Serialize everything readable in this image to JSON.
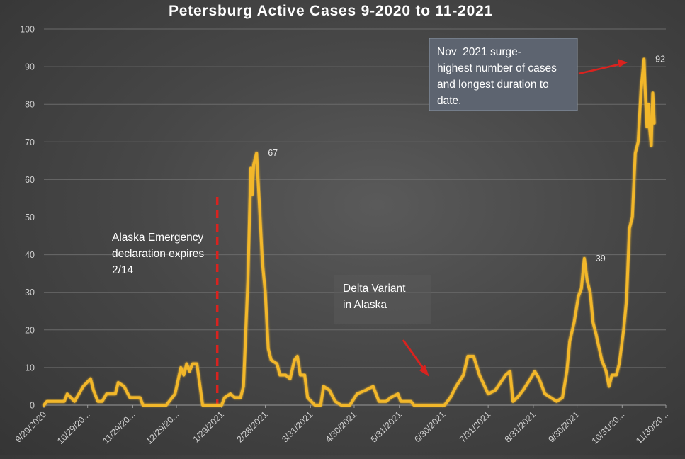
{
  "chart_data": {
    "type": "line",
    "title": "Petersburg Active Cases 9-2020 to 11-2021",
    "xlabel": "",
    "ylabel": "",
    "ylim": [
      0,
      100
    ],
    "yticks": [
      0,
      10,
      20,
      30,
      40,
      50,
      60,
      70,
      80,
      90,
      100
    ],
    "x_range": [
      "2020-09-29",
      "2021-11-30"
    ],
    "xtick_labels": [
      {
        "date": "2020-09-29",
        "label": "9/29/2020"
      },
      {
        "date": "2020-10-29",
        "label": "10/29/20..."
      },
      {
        "date": "2020-11-29",
        "label": "11/29/20..."
      },
      {
        "date": "2020-12-29",
        "label": "12/29/20..."
      },
      {
        "date": "2021-01-29",
        "label": "1/29/2021"
      },
      {
        "date": "2021-02-28",
        "label": "2/28/2021"
      },
      {
        "date": "2021-03-31",
        "label": "3/31/2021"
      },
      {
        "date": "2021-04-30",
        "label": "4/30/2021"
      },
      {
        "date": "2021-05-31",
        "label": "5/31/2021"
      },
      {
        "date": "2021-06-30",
        "label": "6/30/2021"
      },
      {
        "date": "2021-07-31",
        "label": "7/31/2021"
      },
      {
        "date": "2021-08-31",
        "label": "8/31/2021"
      },
      {
        "date": "2021-09-30",
        "label": "9/30/2021"
      },
      {
        "date": "2021-10-31",
        "label": "10/31/20..."
      },
      {
        "date": "2021-11-30",
        "label": "11/30/20..."
      }
    ],
    "grid": true,
    "legend": "none",
    "series": [
      {
        "color": "#f2b72c",
        "points": [
          [
            "2020-09-29",
            0
          ],
          [
            "2020-10-01",
            1
          ],
          [
            "2020-10-13",
            1
          ],
          [
            "2020-10-15",
            3
          ],
          [
            "2020-10-20",
            1
          ],
          [
            "2020-10-26",
            5
          ],
          [
            "2020-10-31",
            7
          ],
          [
            "2020-11-02",
            4
          ],
          [
            "2020-11-05",
            1
          ],
          [
            "2020-11-08",
            1
          ],
          [
            "2020-11-11",
            3
          ],
          [
            "2020-11-17",
            3
          ],
          [
            "2020-11-19",
            6
          ],
          [
            "2020-11-23",
            5
          ],
          [
            "2020-11-27",
            2
          ],
          [
            "2020-12-04",
            2
          ],
          [
            "2020-12-06",
            0
          ],
          [
            "2020-12-22",
            0
          ],
          [
            "2020-12-28",
            3
          ],
          [
            "2021-01-01",
            10
          ],
          [
            "2021-01-03",
            8
          ],
          [
            "2021-01-05",
            11
          ],
          [
            "2021-01-07",
            9
          ],
          [
            "2021-01-09",
            11
          ],
          [
            "2021-01-12",
            11
          ],
          [
            "2021-01-16",
            0
          ],
          [
            "2021-01-29",
            0
          ],
          [
            "2021-01-31",
            2
          ],
          [
            "2021-02-04",
            3
          ],
          [
            "2021-02-07",
            2
          ],
          [
            "2021-02-11",
            2
          ],
          [
            "2021-02-13",
            5
          ],
          [
            "2021-02-16",
            33
          ],
          [
            "2021-02-18",
            63
          ],
          [
            "2021-02-19",
            56
          ],
          [
            "2021-02-20",
            64
          ],
          [
            "2021-02-22",
            67
          ],
          [
            "2021-02-24",
            53
          ],
          [
            "2021-02-26",
            38
          ],
          [
            "2021-02-28",
            30
          ],
          [
            "2021-03-02",
            15
          ],
          [
            "2021-03-04",
            12
          ],
          [
            "2021-03-08",
            11
          ],
          [
            "2021-03-10",
            8
          ],
          [
            "2021-03-14",
            8
          ],
          [
            "2021-03-17",
            7
          ],
          [
            "2021-03-20",
            12
          ],
          [
            "2021-03-22",
            13
          ],
          [
            "2021-03-24",
            8
          ],
          [
            "2021-03-27",
            8
          ],
          [
            "2021-03-29",
            2
          ],
          [
            "2021-04-03",
            0
          ],
          [
            "2021-04-07",
            0
          ],
          [
            "2021-04-09",
            5
          ],
          [
            "2021-04-13",
            4
          ],
          [
            "2021-04-17",
            1
          ],
          [
            "2021-04-21",
            0
          ],
          [
            "2021-04-27",
            0
          ],
          [
            "2021-05-02",
            3
          ],
          [
            "2021-05-08",
            4
          ],
          [
            "2021-05-13",
            5
          ],
          [
            "2021-05-17",
            1
          ],
          [
            "2021-05-22",
            1
          ],
          [
            "2021-05-25",
            2
          ],
          [
            "2021-05-30",
            3
          ],
          [
            "2021-06-01",
            1
          ],
          [
            "2021-06-08",
            1
          ],
          [
            "2021-06-10",
            0
          ],
          [
            "2021-07-01",
            0
          ],
          [
            "2021-07-05",
            2
          ],
          [
            "2021-07-09",
            5
          ],
          [
            "2021-07-14",
            8
          ],
          [
            "2021-07-17",
            13
          ],
          [
            "2021-07-21",
            13
          ],
          [
            "2021-07-25",
            8
          ],
          [
            "2021-07-31",
            3
          ],
          [
            "2021-08-05",
            4
          ],
          [
            "2021-08-12",
            8
          ],
          [
            "2021-08-15",
            9
          ],
          [
            "2021-08-17",
            1
          ],
          [
            "2021-08-20",
            2
          ],
          [
            "2021-08-24",
            4
          ],
          [
            "2021-08-29",
            7
          ],
          [
            "2021-09-01",
            9
          ],
          [
            "2021-09-04",
            7
          ],
          [
            "2021-09-08",
            3
          ],
          [
            "2021-09-12",
            2
          ],
          [
            "2021-09-16",
            1
          ],
          [
            "2021-09-20",
            2
          ],
          [
            "2021-09-23",
            9
          ],
          [
            "2021-09-25",
            17
          ],
          [
            "2021-09-28",
            22
          ],
          [
            "2021-10-01",
            29
          ],
          [
            "2021-10-03",
            31
          ],
          [
            "2021-10-05",
            39
          ],
          [
            "2021-10-07",
            33
          ],
          [
            "2021-10-09",
            30
          ],
          [
            "2021-10-11",
            22
          ],
          [
            "2021-10-13",
            19
          ],
          [
            "2021-10-17",
            12
          ],
          [
            "2021-10-20",
            9
          ],
          [
            "2021-10-22",
            5
          ],
          [
            "2021-10-24",
            8
          ],
          [
            "2021-10-27",
            8
          ],
          [
            "2021-10-29",
            11
          ],
          [
            "2021-11-01",
            20
          ],
          [
            "2021-11-03",
            28
          ],
          [
            "2021-11-05",
            47
          ],
          [
            "2021-11-07",
            50
          ],
          [
            "2021-11-09",
            67
          ],
          [
            "2021-11-11",
            70
          ],
          [
            "2021-11-13",
            84
          ],
          [
            "2021-11-15",
            92
          ],
          [
            "2021-11-16",
            82
          ],
          [
            "2021-11-17",
            74
          ],
          [
            "2021-11-18",
            80
          ],
          [
            "2021-11-19",
            73
          ],
          [
            "2021-11-20",
            69
          ],
          [
            "2021-11-21",
            83
          ],
          [
            "2021-11-22",
            75
          ]
        ]
      }
    ],
    "data_labels": [
      {
        "date": "2021-02-22",
        "value": 67,
        "text": "67"
      },
      {
        "date": "2021-10-05",
        "value": 39,
        "text": "39"
      },
      {
        "date": "2021-11-15",
        "value": 92,
        "text": "92"
      }
    ],
    "marker_line": {
      "date": "2021-01-26",
      "color": "#d9231f",
      "style": "dashed"
    },
    "annotations": [
      {
        "id": "emergency",
        "lines": [
          "Alaska Emergency",
          "declaration expires",
          "2/14"
        ]
      },
      {
        "id": "delta",
        "lines": [
          "Delta Variant",
          "in Alaska"
        ],
        "boxed": true
      },
      {
        "id": "surge",
        "lines": [
          "Nov  2021 surge-",
          "highest number of cases",
          "and longest duration to",
          "date."
        ],
        "boxed": true
      }
    ],
    "colors": {
      "line": "#f2b72c",
      "arrow": "#d9231f",
      "text": "#ffffff",
      "axis_text": "#cfcfcf"
    }
  }
}
